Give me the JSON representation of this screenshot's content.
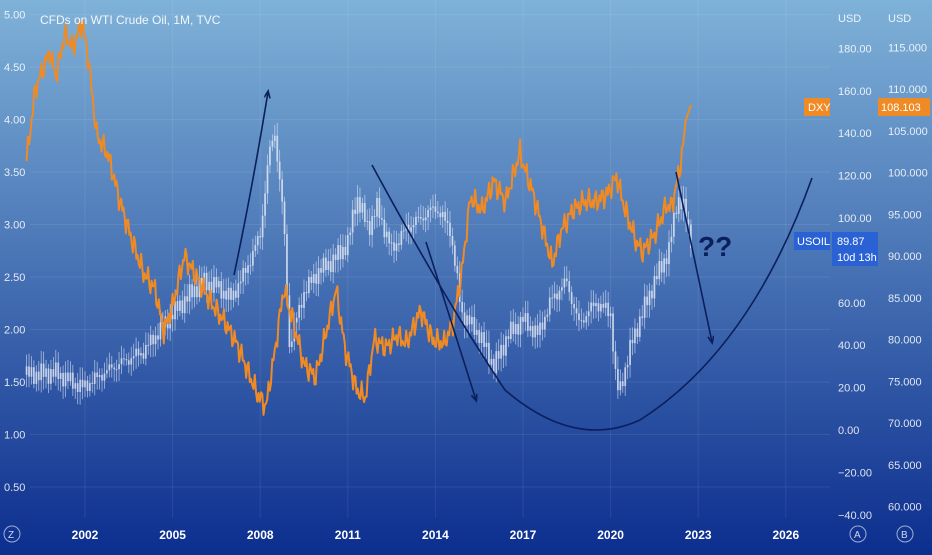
{
  "header": {
    "symbol_title": "CFDs on WTI Crude Oil, 1M, TVC"
  },
  "axes": {
    "left_ticks": [
      "0.50",
      "1.00",
      "1.50",
      "2.00",
      "2.50",
      "3.00",
      "3.50",
      "4.00",
      "4.50",
      "5.00"
    ],
    "mid_unit": "USD",
    "mid_ticks": [
      "−40.00",
      "−20.00",
      "0.00",
      "20.00",
      "40.00",
      "60.00",
      "80.00",
      "100.00",
      "120.00",
      "140.00",
      "160.00",
      "180.00"
    ],
    "right_unit": "USD",
    "right_ticks": [
      "60.000",
      "65.000",
      "70.000",
      "75.000",
      "80.000",
      "85.000",
      "90.000",
      "95.000",
      "100.000",
      "105.000",
      "110.000",
      "115.000"
    ],
    "x_ticks": [
      "2002",
      "2005",
      "2008",
      "2011",
      "2014",
      "2017",
      "2020",
      "2023",
      "2026"
    ],
    "corner_left": "Z",
    "corner_mid": "A",
    "corner_right": "B"
  },
  "badges": {
    "dxy_label": "DXY",
    "dxy_value": "108.103",
    "usoil_label": "USOIL",
    "usoil_value": "89.87",
    "usoil_countdown": "10d 13h"
  },
  "annotation": {
    "question": "??"
  },
  "colors": {
    "orange": "#f08a24",
    "oil_candles": "#dfe6f3",
    "bg_top": "#7fb2d8",
    "bg_bottom": "#0d2f8f",
    "arrow": "#0b1f5c",
    "dxy_badge": "#f08a24",
    "usoil_badge": "#2a62d6"
  },
  "chart_data": [
    {
      "type": "line",
      "name": "DXY",
      "axis": "right",
      "x": [
        2000.0,
        2000.3,
        2000.8,
        2001.0,
        2001.3,
        2001.6,
        2001.9,
        2002.1,
        2002.4,
        2002.8,
        2003.2,
        2003.6,
        2004.0,
        2004.4,
        2004.7,
        2005.0,
        2005.4,
        2005.9,
        2006.3,
        2006.8,
        2007.2,
        2007.6,
        2007.9,
        2008.2,
        2008.5,
        2008.8,
        2009.1,
        2009.5,
        2009.9,
        2010.3,
        2010.6,
        2010.9,
        2011.3,
        2011.6,
        2011.9,
        2012.3,
        2012.7,
        2013.0,
        2013.5,
        2013.9,
        2014.3,
        2014.6,
        2014.9,
        2015.2,
        2015.6,
        2016.0,
        2016.4,
        2016.9,
        2017.0,
        2017.3,
        2017.7,
        2018.0,
        2018.3,
        2018.7,
        2019.1,
        2019.5,
        2019.9,
        2020.2,
        2020.5,
        2020.9,
        2021.1,
        2021.5,
        2021.9,
        2022.1,
        2022.4,
        2022.6,
        2022.75
      ],
      "values": [
        101.5,
        110.0,
        114.5,
        111.5,
        116.5,
        115.0,
        118.0,
        114.0,
        104.5,
        102.0,
        96.5,
        92.0,
        88.0,
        86.0,
        81.0,
        84.0,
        90.0,
        87.0,
        84.5,
        82.0,
        79.5,
        76.0,
        73.5,
        72.0,
        78.5,
        86.0,
        82.5,
        77.0,
        75.5,
        81.5,
        86.0,
        79.0,
        74.0,
        73.0,
        80.0,
        79.0,
        80.5,
        79.5,
        83.5,
        80.0,
        79.5,
        82.0,
        88.0,
        97.0,
        95.5,
        99.0,
        96.5,
        102.5,
        101.0,
        98.0,
        93.0,
        89.0,
        93.0,
        95.5,
        96.5,
        96.5,
        97.5,
        99.5,
        95.5,
        91.5,
        90.5,
        92.5,
        96.0,
        96.0,
        101.0,
        106.5,
        108.103
      ]
    },
    {
      "type": "candlestick",
      "name": "USOIL",
      "axis": "mid",
      "x": [
        2000.0,
        2001.0,
        2001.9,
        2003.0,
        2004.0,
        2005.0,
        2006.0,
        2006.5,
        2007.0,
        2007.5,
        2008.0,
        2008.3,
        2008.5,
        2008.8,
        2009.0,
        2009.5,
        2010.0,
        2010.5,
        2011.0,
        2011.3,
        2011.7,
        2012.0,
        2012.5,
        2013.0,
        2013.5,
        2014.0,
        2014.5,
        2014.9,
        2015.2,
        2015.5,
        2016.0,
        2016.5,
        2017.0,
        2017.5,
        2018.0,
        2018.5,
        2018.9,
        2019.5,
        2020.0,
        2020.2,
        2020.3,
        2020.7,
        2021.0,
        2021.5,
        2022.0,
        2022.3,
        2022.5,
        2022.75
      ],
      "values": [
        26,
        27,
        20,
        30,
        37,
        55,
        70,
        68,
        62,
        75,
        92,
        130,
        140,
        100,
        40,
        65,
        75,
        80,
        88,
        110,
        95,
        105,
        85,
        95,
        100,
        105,
        95,
        55,
        50,
        45,
        30,
        45,
        52,
        45,
        62,
        70,
        50,
        60,
        55,
        20,
        18,
        40,
        52,
        70,
        85,
        110,
        105,
        89.87
      ]
    }
  ]
}
